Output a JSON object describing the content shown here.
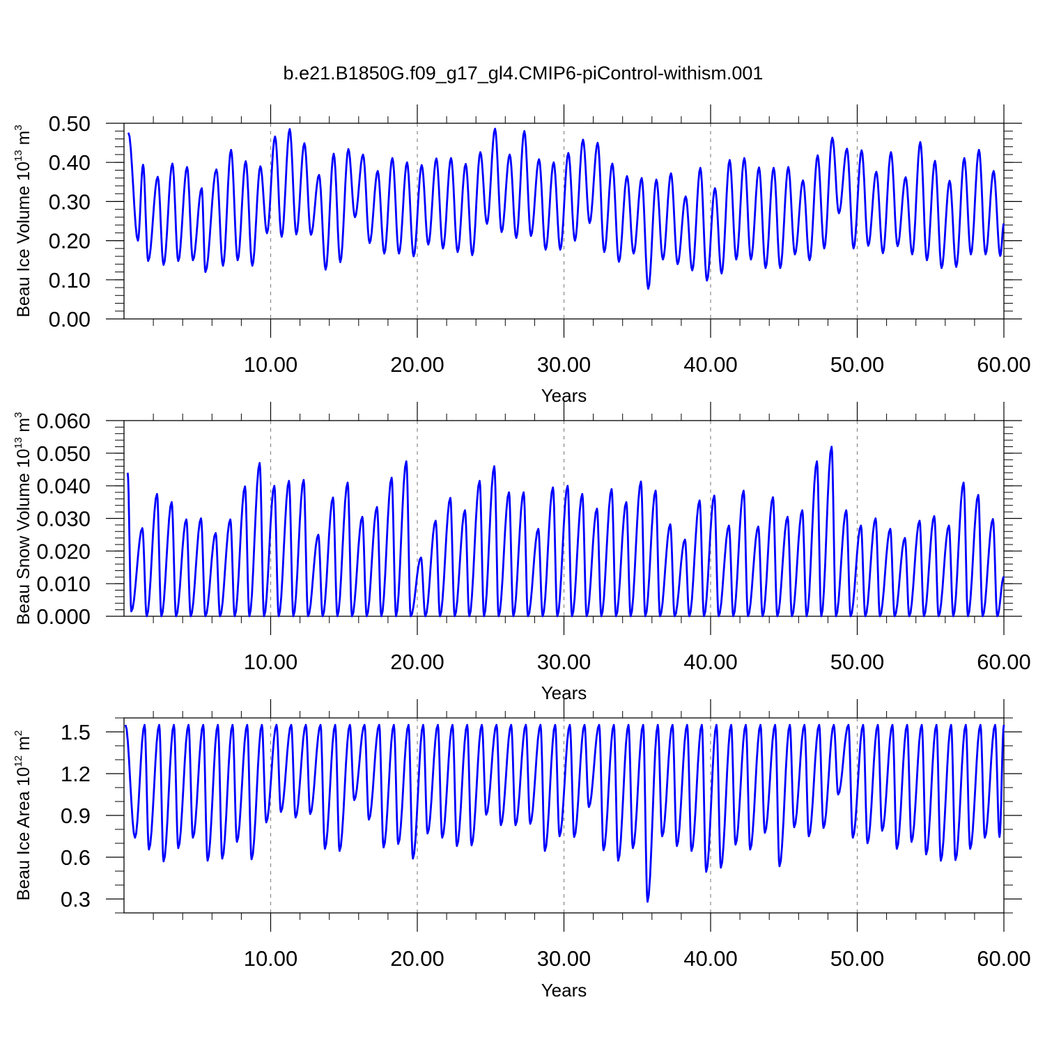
{
  "title": "b.e21.B1850G.f09_g17_gl4.CMIP6-piControl-withism.001",
  "colors": {
    "line": "#0000ff",
    "grid": "#888888",
    "axis": "#000000"
  },
  "chart_data": [
    {
      "type": "line",
      "name": "ice-volume",
      "xlabel": "Years",
      "ylabel": {
        "before": "Beau Ice Volume 10",
        "exp": "13",
        "mid": " m",
        "unit_exp": "3"
      },
      "xlim": [
        0.0,
        60.0
      ],
      "ylim": [
        0.0,
        0.5
      ],
      "xticks": [
        10,
        20,
        30,
        40,
        50,
        60
      ],
      "xtick_labels": [
        "10.00",
        "20.00",
        "30.00",
        "40.00",
        "50.00",
        "60.00"
      ],
      "yticks": [
        0.0,
        0.1,
        0.2,
        0.3,
        0.4,
        0.5
      ],
      "ytick_labels": [
        "0.00",
        "0.10",
        "0.20",
        "0.30",
        "0.40",
        "0.50"
      ],
      "yminor": 0.02,
      "grid": "vertical-dashed",
      "cycles": [
        [
          0.3,
          0.476,
          0.95,
          0.2
        ],
        [
          1.3,
          0.394,
          1.65,
          0.148
        ],
        [
          2.3,
          0.363,
          2.7,
          0.138
        ],
        [
          3.3,
          0.397,
          3.7,
          0.148
        ],
        [
          4.3,
          0.388,
          4.7,
          0.15
        ],
        [
          5.3,
          0.334,
          5.55,
          0.12
        ],
        [
          6.3,
          0.382,
          6.75,
          0.136
        ],
        [
          7.3,
          0.432,
          7.75,
          0.15
        ],
        [
          8.3,
          0.403,
          8.75,
          0.136
        ],
        [
          9.3,
          0.39,
          9.75,
          0.219
        ],
        [
          10.3,
          0.466,
          10.75,
          0.21
        ],
        [
          11.3,
          0.485,
          11.75,
          0.216
        ],
        [
          12.3,
          0.449,
          12.75,
          0.215
        ],
        [
          13.3,
          0.368,
          13.75,
          0.126
        ],
        [
          14.3,
          0.422,
          14.75,
          0.145
        ],
        [
          15.3,
          0.434,
          15.75,
          0.26
        ],
        [
          16.3,
          0.42,
          16.75,
          0.194
        ],
        [
          17.3,
          0.378,
          17.75,
          0.167
        ],
        [
          18.3,
          0.411,
          18.75,
          0.167
        ],
        [
          19.3,
          0.4,
          19.75,
          0.16
        ],
        [
          20.3,
          0.393,
          20.75,
          0.19
        ],
        [
          21.3,
          0.41,
          21.75,
          0.18
        ],
        [
          22.3,
          0.411,
          22.75,
          0.171
        ],
        [
          23.3,
          0.396,
          23.75,
          0.163
        ],
        [
          24.3,
          0.426,
          24.75,
          0.243
        ],
        [
          25.3,
          0.486,
          25.75,
          0.222
        ],
        [
          26.3,
          0.42,
          26.75,
          0.207
        ],
        [
          27.3,
          0.48,
          27.75,
          0.212
        ],
        [
          28.3,
          0.408,
          28.75,
          0.177
        ],
        [
          29.3,
          0.4,
          29.75,
          0.177
        ],
        [
          30.3,
          0.424,
          30.75,
          0.2
        ],
        [
          31.3,
          0.458,
          31.75,
          0.245
        ],
        [
          32.3,
          0.45,
          32.75,
          0.171
        ],
        [
          33.3,
          0.397,
          33.75,
          0.146
        ],
        [
          34.3,
          0.365,
          34.75,
          0.167
        ],
        [
          35.3,
          0.36,
          35.75,
          0.077
        ],
        [
          36.3,
          0.356,
          36.75,
          0.152
        ],
        [
          37.3,
          0.372,
          37.75,
          0.14
        ],
        [
          38.3,
          0.313,
          38.75,
          0.124
        ],
        [
          39.3,
          0.386,
          39.75,
          0.098
        ],
        [
          40.3,
          0.334,
          40.75,
          0.116
        ],
        [
          41.3,
          0.406,
          41.75,
          0.152
        ],
        [
          42.3,
          0.411,
          42.75,
          0.152
        ],
        [
          43.3,
          0.387,
          43.75,
          0.13
        ],
        [
          44.3,
          0.386,
          44.75,
          0.13
        ],
        [
          45.3,
          0.388,
          45.75,
          0.165
        ],
        [
          46.3,
          0.354,
          46.75,
          0.15
        ],
        [
          47.3,
          0.418,
          47.75,
          0.18
        ],
        [
          48.3,
          0.463,
          48.75,
          0.27
        ],
        [
          49.3,
          0.435,
          49.75,
          0.18
        ],
        [
          50.3,
          0.431,
          50.75,
          0.187
        ],
        [
          51.3,
          0.376,
          51.75,
          0.168
        ],
        [
          52.3,
          0.426,
          52.75,
          0.186
        ],
        [
          53.3,
          0.362,
          53.75,
          0.165
        ],
        [
          54.3,
          0.452,
          54.75,
          0.15
        ],
        [
          55.3,
          0.404,
          55.75,
          0.13
        ],
        [
          56.3,
          0.353,
          56.75,
          0.133
        ],
        [
          57.3,
          0.411,
          57.75,
          0.165
        ],
        [
          58.3,
          0.432,
          58.75,
          0.165
        ],
        [
          59.3,
          0.378,
          59.75,
          0.161
        ],
        [
          60.0,
          0.244,
          60.0,
          0.244
        ]
      ]
    },
    {
      "type": "line",
      "name": "snow-volume",
      "xlabel": "Years",
      "ylabel": {
        "before": "Beau Snow Volume 10",
        "exp": "13",
        "mid": " m",
        "unit_exp": "3"
      },
      "xlim": [
        0.0,
        60.0
      ],
      "ylim": [
        0.0,
        0.06
      ],
      "xticks": [
        10,
        20,
        30,
        40,
        50,
        60
      ],
      "xtick_labels": [
        "10.00",
        "20.00",
        "30.00",
        "40.00",
        "50.00",
        "60.00"
      ],
      "yticks": [
        0.0,
        0.01,
        0.02,
        0.03,
        0.04,
        0.05,
        0.06
      ],
      "ytick_labels": [
        "0.000",
        "0.010",
        "0.020",
        "0.030",
        "0.040",
        "0.050",
        "0.060"
      ],
      "yminor": 0.002,
      "grid": "vertical-dashed",
      "cycles": [
        [
          0.25,
          0.044,
          0.5,
          0.0015
        ],
        [
          1.25,
          0.027,
          1.55,
          0.0
        ],
        [
          2.25,
          0.0375,
          2.55,
          0.0
        ],
        [
          3.25,
          0.035,
          3.55,
          0.0
        ],
        [
          4.25,
          0.0297,
          4.55,
          0.0
        ],
        [
          5.25,
          0.03,
          5.55,
          0.0
        ],
        [
          6.25,
          0.0255,
          6.55,
          0.0
        ],
        [
          7.25,
          0.0297,
          7.55,
          0.0
        ],
        [
          8.25,
          0.0398,
          8.55,
          0.0
        ],
        [
          9.25,
          0.047,
          9.55,
          0.0
        ],
        [
          10.25,
          0.04,
          10.55,
          0.0
        ],
        [
          11.25,
          0.0415,
          11.55,
          0.0
        ],
        [
          12.25,
          0.0418,
          12.55,
          0.0
        ],
        [
          13.25,
          0.025,
          13.55,
          0.0
        ],
        [
          14.25,
          0.0364,
          14.55,
          0.0
        ],
        [
          15.25,
          0.041,
          15.55,
          0.0
        ],
        [
          16.25,
          0.0305,
          16.55,
          0.0
        ],
        [
          17.25,
          0.0335,
          17.55,
          0.0
        ],
        [
          18.25,
          0.0425,
          18.55,
          0.0
        ],
        [
          19.25,
          0.0475,
          19.55,
          0.0
        ],
        [
          20.25,
          0.018,
          20.55,
          0.0
        ],
        [
          21.25,
          0.0293,
          21.55,
          0.0
        ],
        [
          22.25,
          0.0363,
          22.55,
          0.0
        ],
        [
          23.25,
          0.0325,
          23.55,
          0.0
        ],
        [
          24.25,
          0.0415,
          24.55,
          0.0
        ],
        [
          25.25,
          0.046,
          25.55,
          0.0
        ],
        [
          26.25,
          0.038,
          26.55,
          0.0
        ],
        [
          27.25,
          0.038,
          27.55,
          0.0
        ],
        [
          28.25,
          0.0268,
          28.55,
          0.0
        ],
        [
          29.25,
          0.0395,
          29.55,
          0.0
        ],
        [
          30.25,
          0.04,
          30.55,
          0.0
        ],
        [
          31.25,
          0.0375,
          31.55,
          0.0
        ],
        [
          32.25,
          0.033,
          32.55,
          0.0
        ],
        [
          33.25,
          0.039,
          33.55,
          0.0
        ],
        [
          34.25,
          0.035,
          34.55,
          0.0
        ],
        [
          35.25,
          0.0413,
          35.55,
          0.0
        ],
        [
          36.25,
          0.0385,
          36.55,
          0.0
        ],
        [
          37.25,
          0.0282,
          37.55,
          0.0
        ],
        [
          38.25,
          0.0235,
          38.55,
          0.0
        ],
        [
          39.25,
          0.0355,
          39.55,
          0.0
        ],
        [
          40.25,
          0.037,
          40.55,
          0.0
        ],
        [
          41.25,
          0.0278,
          41.55,
          0.0
        ],
        [
          42.25,
          0.0385,
          42.55,
          0.0
        ],
        [
          43.25,
          0.0275,
          43.55,
          0.0
        ],
        [
          44.25,
          0.0365,
          44.55,
          0.0
        ],
        [
          45.25,
          0.0305,
          45.55,
          0.0
        ],
        [
          46.25,
          0.0325,
          46.55,
          0.0
        ],
        [
          47.25,
          0.0475,
          47.55,
          0.0
        ],
        [
          48.25,
          0.052,
          48.55,
          0.0
        ],
        [
          49.25,
          0.0325,
          49.55,
          0.0
        ],
        [
          50.25,
          0.0278,
          50.55,
          0.0
        ],
        [
          51.25,
          0.03,
          51.55,
          0.0
        ],
        [
          52.25,
          0.0268,
          52.55,
          0.0
        ],
        [
          53.25,
          0.024,
          53.55,
          0.0
        ],
        [
          54.25,
          0.0293,
          54.55,
          0.0
        ],
        [
          55.25,
          0.0307,
          55.55,
          0.0
        ],
        [
          56.25,
          0.0278,
          56.55,
          0.0
        ],
        [
          57.25,
          0.041,
          57.55,
          0.0
        ],
        [
          58.25,
          0.0372,
          58.55,
          0.0
        ],
        [
          59.25,
          0.0298,
          59.55,
          0.0
        ],
        [
          60.0,
          0.0122,
          60.0,
          0.0122
        ]
      ]
    },
    {
      "type": "line",
      "name": "ice-area",
      "xlabel": "Years",
      "ylabel": {
        "before": "Beau Ice Area 10",
        "exp": "12",
        "mid": " m",
        "unit_exp": "2"
      },
      "xlim": [
        0.0,
        60.0
      ],
      "ylim": [
        0.2,
        1.6
      ],
      "xticks": [
        10,
        20,
        30,
        40,
        50,
        60
      ],
      "xtick_labels": [
        "10.00",
        "20.00",
        "30.00",
        "40.00",
        "50.00",
        "60.00"
      ],
      "yticks": [
        0.3,
        0.6,
        0.9,
        1.2,
        1.5
      ],
      "ytick_labels": [
        "0.3",
        "0.6",
        "0.9",
        "1.2",
        "1.5"
      ],
      "yminor": 0.1,
      "grid": "vertical-dashed",
      "cycles": [
        [
          0.1,
          1.55,
          0.75,
          0.74
        ],
        [
          1.4,
          1.55,
          1.7,
          0.655
        ],
        [
          2.4,
          1.55,
          2.7,
          0.57
        ],
        [
          3.4,
          1.55,
          3.7,
          0.665
        ],
        [
          4.4,
          1.55,
          4.7,
          0.74
        ],
        [
          5.4,
          1.55,
          5.7,
          0.575
        ],
        [
          6.4,
          1.55,
          6.7,
          0.59
        ],
        [
          7.4,
          1.55,
          7.7,
          0.71
        ],
        [
          8.4,
          1.55,
          8.7,
          0.585
        ],
        [
          9.4,
          1.55,
          9.7,
          0.85
        ],
        [
          10.4,
          1.55,
          10.7,
          0.925
        ],
        [
          11.4,
          1.55,
          11.7,
          0.885
        ],
        [
          12.4,
          1.55,
          12.7,
          0.91
        ],
        [
          13.4,
          1.55,
          13.7,
          0.66
        ],
        [
          14.4,
          1.55,
          14.7,
          0.645
        ],
        [
          15.4,
          1.55,
          15.7,
          1.01
        ],
        [
          16.4,
          1.55,
          16.7,
          0.87
        ],
        [
          17.4,
          1.55,
          17.7,
          0.67
        ],
        [
          18.4,
          1.55,
          18.7,
          0.695
        ],
        [
          19.4,
          1.55,
          19.7,
          0.59
        ],
        [
          20.4,
          1.55,
          20.7,
          0.77
        ],
        [
          21.4,
          1.55,
          21.7,
          0.74
        ],
        [
          22.4,
          1.55,
          22.7,
          0.68
        ],
        [
          23.4,
          1.55,
          23.7,
          0.685
        ],
        [
          24.4,
          1.55,
          24.7,
          0.905
        ],
        [
          25.4,
          1.55,
          25.7,
          0.83
        ],
        [
          26.4,
          1.55,
          26.7,
          0.83
        ],
        [
          27.4,
          1.55,
          27.7,
          0.84
        ],
        [
          28.4,
          1.55,
          28.7,
          0.645
        ],
        [
          29.4,
          1.55,
          29.7,
          0.75
        ],
        [
          30.4,
          1.55,
          30.7,
          0.745
        ],
        [
          31.4,
          1.55,
          31.7,
          0.96
        ],
        [
          32.4,
          1.55,
          32.7,
          0.65
        ],
        [
          33.4,
          1.55,
          33.7,
          0.575
        ],
        [
          34.4,
          1.55,
          34.7,
          0.665
        ],
        [
          35.4,
          1.55,
          35.7,
          0.28
        ],
        [
          36.4,
          1.55,
          36.7,
          0.75
        ],
        [
          37.4,
          1.55,
          37.7,
          0.68
        ],
        [
          38.4,
          1.55,
          38.7,
          0.645
        ],
        [
          39.4,
          1.55,
          39.7,
          0.495
        ],
        [
          40.4,
          1.55,
          40.7,
          0.525
        ],
        [
          41.4,
          1.55,
          41.7,
          0.69
        ],
        [
          42.4,
          1.55,
          42.7,
          0.655
        ],
        [
          43.4,
          1.55,
          43.7,
          0.775
        ],
        [
          44.4,
          1.55,
          44.7,
          0.535
        ],
        [
          45.4,
          1.55,
          45.7,
          0.815
        ],
        [
          46.4,
          1.55,
          46.7,
          0.75
        ],
        [
          47.4,
          1.55,
          47.7,
          0.81
        ],
        [
          48.4,
          1.55,
          48.7,
          1.05
        ],
        [
          49.4,
          1.55,
          49.7,
          0.74
        ],
        [
          50.4,
          1.55,
          50.7,
          0.7
        ],
        [
          51.4,
          1.55,
          51.7,
          0.79
        ],
        [
          52.4,
          1.55,
          52.7,
          0.66
        ],
        [
          53.4,
          1.55,
          53.7,
          0.71
        ],
        [
          54.4,
          1.55,
          54.7,
          0.62
        ],
        [
          55.4,
          1.55,
          55.7,
          0.575
        ],
        [
          56.4,
          1.55,
          56.7,
          0.58
        ],
        [
          57.4,
          1.55,
          57.7,
          0.66
        ],
        [
          58.4,
          1.55,
          58.7,
          0.74
        ],
        [
          59.4,
          1.55,
          59.7,
          0.745
        ],
        [
          60.0,
          1.55,
          60.0,
          1.55
        ]
      ]
    }
  ]
}
